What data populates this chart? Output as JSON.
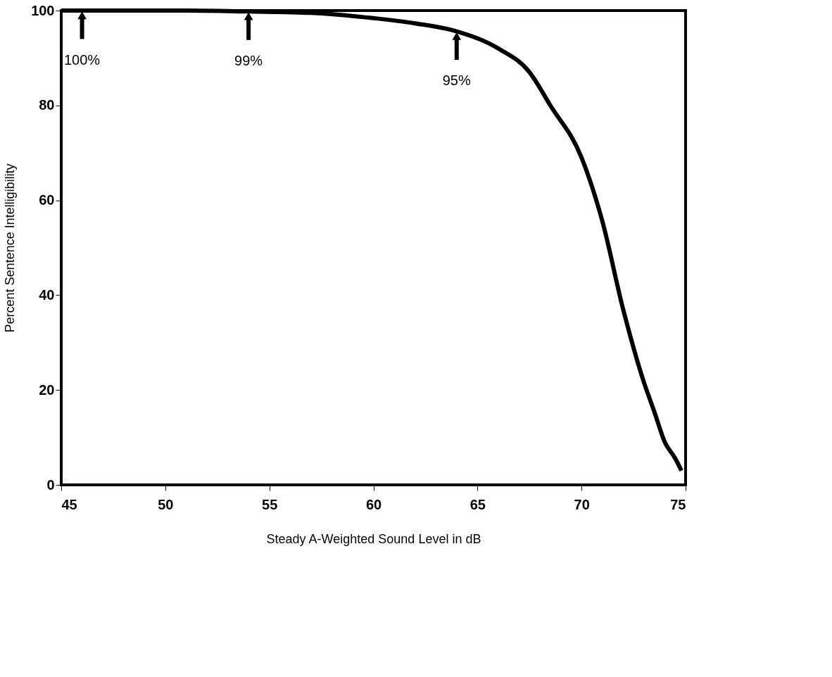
{
  "chart_data": {
    "type": "line",
    "xlabel": "Steady A-Weighted Sound Level in dB",
    "ylabel": "Percent Sentence Intelligibility",
    "x": [
      45,
      48,
      51,
      54,
      57,
      60,
      62,
      64,
      66,
      67.5,
      68.5,
      70,
      71,
      72,
      73,
      73.5,
      74,
      74.5,
      74.8
    ],
    "series": [
      {
        "color": "#000000",
        "values": [
          100,
          100,
          100,
          99.8,
          99.5,
          98.4,
          97.3,
          95.6,
          92,
          87,
          80,
          69,
          55.6,
          37,
          21.6,
          15.4,
          9,
          5.6,
          3
        ]
      }
    ],
    "xlim": [
      45,
      75
    ],
    "xticks": [
      45,
      50,
      55,
      60,
      65,
      70,
      75
    ],
    "ylim": [
      0,
      100
    ],
    "yticks": [
      0,
      20,
      40,
      60,
      80,
      100
    ],
    "grid": false,
    "marker": "none",
    "line_style": "solid",
    "annotations": [
      {
        "text": "100%",
        "x": 46,
        "y": 100
      },
      {
        "text": "99%",
        "x": 54,
        "y": 99.8
      },
      {
        "text": "95%",
        "x": 64,
        "y": 95.6
      }
    ]
  }
}
